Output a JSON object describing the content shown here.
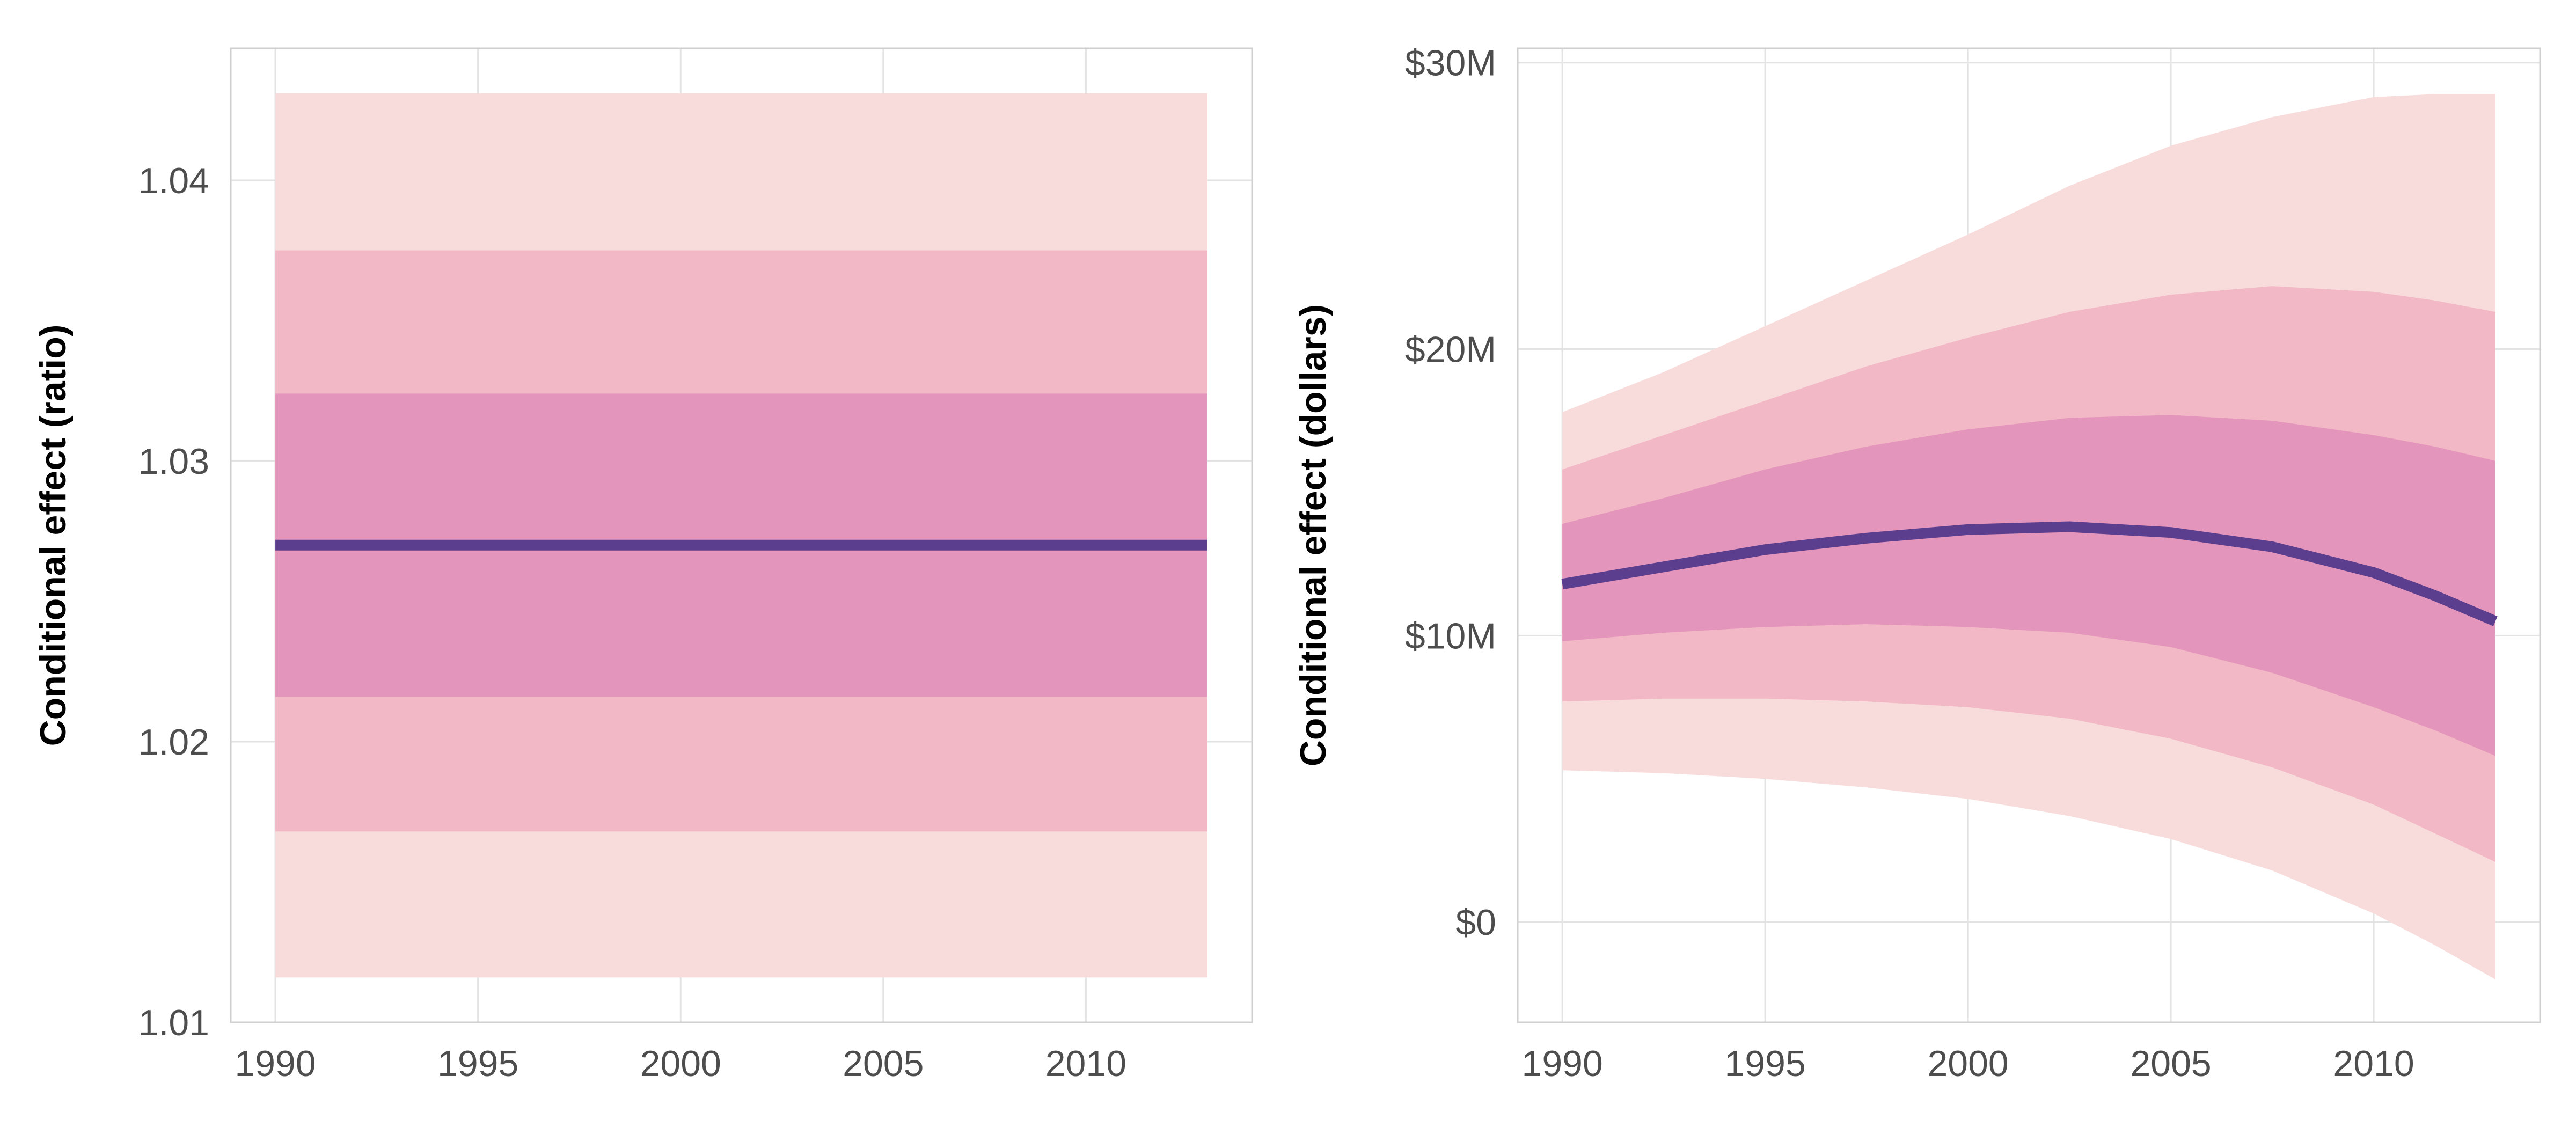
{
  "chart_data": [
    {
      "type": "line",
      "title": "",
      "xlabel": "",
      "ylabel": "Conditional effect (ratio)",
      "x": [
        1990,
        2013
      ],
      "xlim": [
        1988.9,
        2014.1
      ],
      "ylim": [
        1.01,
        1.0447
      ],
      "xticks": [
        1990,
        1995,
        2000,
        2005,
        2010
      ],
      "xtick_labels": [
        "1990",
        "1995",
        "2000",
        "2005",
        "2010"
      ],
      "yticks": [
        1.01,
        1.02,
        1.03,
        1.04
      ],
      "ytick_labels": [
        "1.01",
        "1.02",
        "1.03",
        "1.04"
      ],
      "grid": true,
      "legend": "none",
      "series": [
        {
          "role": "interval-outer",
          "lower": [
            1.0116,
            1.0116
          ],
          "upper": [
            1.0431,
            1.0431
          ]
        },
        {
          "role": "interval-middle",
          "lower": [
            1.0168,
            1.0168
          ],
          "upper": [
            1.0375,
            1.0375
          ]
        },
        {
          "role": "interval-inner",
          "lower": [
            1.0216,
            1.0216
          ],
          "upper": [
            1.0324,
            1.0324
          ]
        },
        {
          "role": "estimate",
          "values": [
            1.027,
            1.027
          ]
        }
      ]
    },
    {
      "type": "line",
      "title": "",
      "xlabel": "",
      "ylabel": "Conditional effect (dollars)",
      "x": [
        1990,
        1992.5,
        1995,
        1997.5,
        2000,
        2002.5,
        2005,
        2007.5,
        2010,
        2011.5,
        2013
      ],
      "xlim": [
        1988.9,
        2014.1
      ],
      "ylim": [
        -3.5,
        30.5
      ],
      "xticks": [
        1990,
        1995,
        2000,
        2005,
        2010
      ],
      "xtick_labels": [
        "1990",
        "1995",
        "2000",
        "2005",
        "2010"
      ],
      "yticks": [
        0,
        10,
        20,
        30
      ],
      "ytick_labels": [
        "$0",
        "$10M",
        "$20M",
        "$30M"
      ],
      "grid": true,
      "legend": "none",
      "series": [
        {
          "role": "interval-outer",
          "lower": [
            5.3,
            5.2,
            5.0,
            4.7,
            4.3,
            3.7,
            2.9,
            1.8,
            0.3,
            -0.8,
            -2.0
          ],
          "upper": [
            17.8,
            19.2,
            20.8,
            22.4,
            24.0,
            25.7,
            27.1,
            28.1,
            28.8,
            28.9,
            28.9
          ]
        },
        {
          "role": "interval-middle",
          "lower": [
            7.7,
            7.8,
            7.8,
            7.7,
            7.5,
            7.1,
            6.4,
            5.4,
            4.1,
            3.1,
            2.1
          ],
          "upper": [
            15.8,
            17.0,
            18.2,
            19.4,
            20.4,
            21.3,
            21.9,
            22.2,
            22.0,
            21.7,
            21.3
          ]
        },
        {
          "role": "interval-inner",
          "lower": [
            9.8,
            10.1,
            10.3,
            10.4,
            10.3,
            10.1,
            9.6,
            8.7,
            7.5,
            6.7,
            5.8
          ],
          "upper": [
            13.9,
            14.8,
            15.8,
            16.6,
            17.2,
            17.6,
            17.7,
            17.5,
            17.0,
            16.6,
            16.1
          ]
        },
        {
          "role": "estimate",
          "values": [
            11.8,
            12.4,
            13.0,
            13.4,
            13.7,
            13.8,
            13.6,
            13.1,
            12.2,
            11.4,
            10.5
          ]
        }
      ]
    }
  ],
  "colors": {
    "interval_outer": "#f8dcdb",
    "interval_middle": "#f2b8c5",
    "interval_inner": "#e495bb",
    "estimate_line": "#5b3e8e"
  }
}
